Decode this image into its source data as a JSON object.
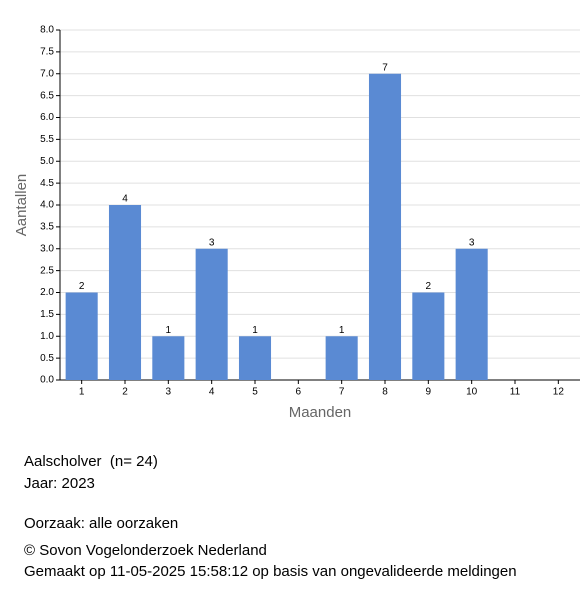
{
  "chart_data": {
    "type": "bar",
    "x_label": "Maanden",
    "y_label": "Aantallen",
    "categories": [
      "1",
      "2",
      "3",
      "4",
      "5",
      "6",
      "7",
      "8",
      "9",
      "10",
      "11",
      "12"
    ],
    "values": [
      2,
      4,
      1,
      3,
      1,
      null,
      1,
      7,
      2,
      3,
      null,
      null
    ],
    "color": "#5a8ad3",
    "ylim": [
      0,
      8
    ],
    "yticks": [
      {
        "value": 0,
        "label": "0.0"
      },
      {
        "value": 0.5,
        "label": "0.5"
      },
      {
        "value": 1,
        "label": "1.0"
      },
      {
        "value": 1.5,
        "label": "1.5"
      },
      {
        "value": 2,
        "label": "2.0"
      },
      {
        "value": 2.5,
        "label": "2.5"
      },
      {
        "value": 3,
        "label": "3.0"
      },
      {
        "value": 3.5,
        "label": "3.5"
      },
      {
        "value": 4,
        "label": "4.0"
      },
      {
        "value": 4.5,
        "label": "4.5"
      },
      {
        "value": 5,
        "label": "5.0"
      },
      {
        "value": 5.5,
        "label": "5.5"
      },
      {
        "value": 6,
        "label": "6.0"
      },
      {
        "value": 6.5,
        "label": "6.5"
      },
      {
        "value": 7,
        "label": "7.0"
      },
      {
        "value": 7.5,
        "label": "7.5"
      },
      {
        "value": 8,
        "label": "8.0"
      }
    ],
    "grid": true
  },
  "info": {
    "species": "Aalscholver  (n= 24)",
    "year": "Jaar: 2023",
    "cause": "Oorzaak: alle oorzaken",
    "copyright": "© Sovon Vogelonderzoek Nederland",
    "made": "Gemaakt op 11-05-2025 15:58:12 op basis van ongevalideerde meldingen"
  }
}
